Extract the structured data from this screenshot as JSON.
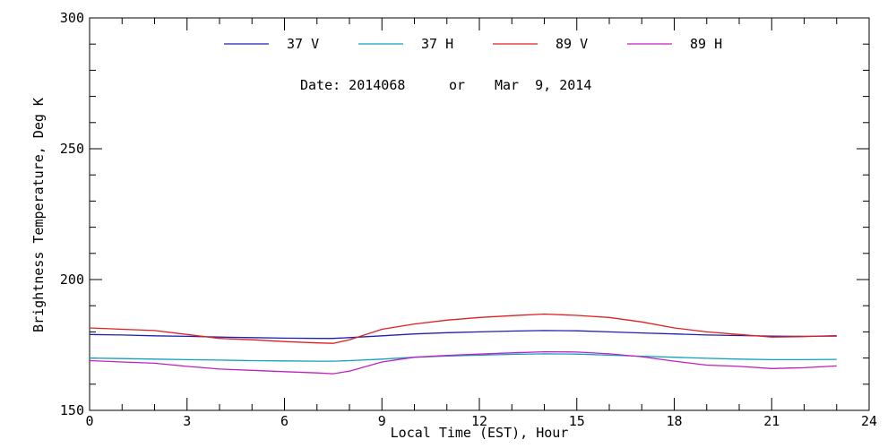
{
  "chart_data": {
    "type": "line",
    "title": "",
    "xlabel": "Local Time (EST), Hour",
    "ylabel": "Brightness Temperature, Deg K",
    "xlim": [
      0,
      24
    ],
    "ylim": [
      150,
      300
    ],
    "x_ticks": [
      0,
      3,
      6,
      9,
      12,
      15,
      18,
      21,
      24
    ],
    "y_ticks": [
      150,
      200,
      250,
      300
    ],
    "y_minor_step": 10,
    "x_minor_step": 1,
    "grid": false,
    "legend_position": "top-center",
    "annotation": {
      "date_label": "Date: 2014068",
      "connector": "or",
      "date_text": "Mar  9, 2014"
    },
    "x": [
      0,
      1,
      2,
      3,
      4,
      5,
      6,
      7,
      7.5,
      8,
      9,
      10,
      11,
      12,
      13,
      14,
      15,
      16,
      17,
      18,
      19,
      20,
      21,
      22,
      23
    ],
    "series": [
      {
        "name": "37 V",
        "color": "#2020b0",
        "values": [
          179.0,
          178.8,
          178.5,
          178.3,
          178.0,
          177.8,
          177.6,
          177.5,
          177.5,
          177.8,
          178.5,
          179.2,
          179.7,
          180.0,
          180.3,
          180.5,
          180.4,
          180.0,
          179.6,
          179.2,
          178.8,
          178.6,
          178.4,
          178.3,
          178.4
        ]
      },
      {
        "name": "37 H",
        "color": "#10a0c0",
        "values": [
          170.0,
          169.8,
          169.6,
          169.4,
          169.2,
          169.0,
          168.9,
          168.8,
          168.8,
          169.0,
          169.6,
          170.3,
          170.8,
          171.1,
          171.4,
          171.6,
          171.5,
          171.1,
          170.7,
          170.3,
          169.9,
          169.6,
          169.4,
          169.4,
          169.5
        ]
      },
      {
        "name": "89 V",
        "color": "#e02020",
        "values": [
          181.5,
          181.0,
          180.5,
          179.0,
          177.5,
          177.0,
          176.3,
          175.8,
          175.6,
          177.0,
          181.0,
          183.0,
          184.5,
          185.5,
          186.2,
          186.8,
          186.3,
          185.5,
          183.8,
          181.5,
          180.0,
          179.0,
          178.0,
          178.2,
          178.6
        ]
      },
      {
        "name": "89 H",
        "color": "#c020c0",
        "values": [
          169.0,
          168.5,
          168.0,
          166.8,
          165.8,
          165.3,
          164.8,
          164.3,
          164.0,
          165.0,
          168.5,
          170.3,
          171.0,
          171.5,
          172.0,
          172.4,
          172.3,
          171.6,
          170.5,
          168.8,
          167.3,
          166.8,
          166.0,
          166.3,
          167.0
        ]
      }
    ]
  }
}
